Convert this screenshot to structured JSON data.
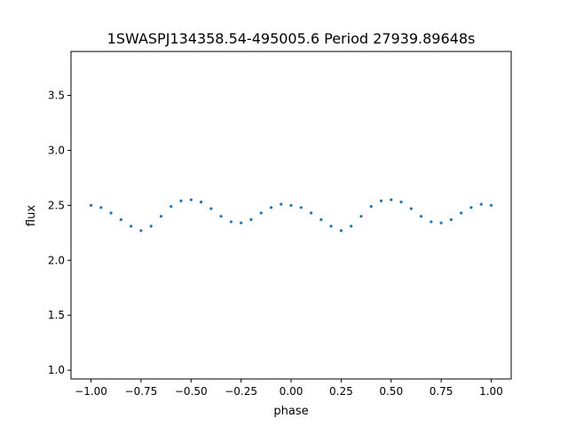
{
  "chart_data": {
    "type": "scatter",
    "title": "1SWASPJ134358.54-495005.6 Period 27939.89648s",
    "xlabel": "phase",
    "ylabel": "flux",
    "xlim": [
      -1.1,
      1.1
    ],
    "ylim": [
      0.92,
      3.9
    ],
    "xticks": [
      {
        "value": -1.0,
        "label": "−1.00"
      },
      {
        "value": -0.75,
        "label": "−0.75"
      },
      {
        "value": -0.5,
        "label": "−0.50"
      },
      {
        "value": -0.25,
        "label": "−0.25"
      },
      {
        "value": 0.0,
        "label": "0.00"
      },
      {
        "value": 0.25,
        "label": "0.25"
      },
      {
        "value": 0.5,
        "label": "0.50"
      },
      {
        "value": 0.75,
        "label": "0.75"
      },
      {
        "value": 1.0,
        "label": "1.00"
      }
    ],
    "yticks": [
      {
        "value": 1.0,
        "label": "1.0"
      },
      {
        "value": 1.5,
        "label": "1.5"
      },
      {
        "value": 2.0,
        "label": "2.0"
      },
      {
        "value": 2.5,
        "label": "2.5"
      },
      {
        "value": 3.0,
        "label": "3.0"
      },
      {
        "value": 3.5,
        "label": "3.5"
      }
    ],
    "grid": false,
    "legend": "none",
    "marker_color": "#1f77b4",
    "series": [
      {
        "x": [
          -1.0,
          -0.95,
          -0.9,
          -0.85,
          -0.8,
          -0.75,
          -0.7,
          -0.65,
          -0.6,
          -0.55,
          -0.5,
          -0.45,
          -0.4,
          -0.35,
          -0.3,
          -0.25,
          -0.2,
          -0.15,
          -0.1,
          -0.05,
          0.0,
          0.05,
          0.1,
          0.15,
          0.2,
          0.25,
          0.3,
          0.35,
          0.4,
          0.45,
          0.5,
          0.55,
          0.6,
          0.65,
          0.7,
          0.75,
          0.8,
          0.85,
          0.9,
          0.95,
          1.0
        ],
        "y": [
          2.5,
          2.48,
          2.43,
          2.37,
          2.31,
          2.27,
          2.31,
          2.4,
          2.49,
          2.54,
          2.55,
          2.53,
          2.47,
          2.4,
          2.35,
          2.34,
          2.37,
          2.43,
          2.48,
          2.51,
          2.5,
          2.48,
          2.43,
          2.37,
          2.31,
          2.27,
          2.31,
          2.4,
          2.49,
          2.54,
          2.55,
          2.53,
          2.47,
          2.4,
          2.35,
          2.34,
          2.37,
          2.43,
          2.48,
          2.51,
          2.5
        ]
      }
    ]
  }
}
